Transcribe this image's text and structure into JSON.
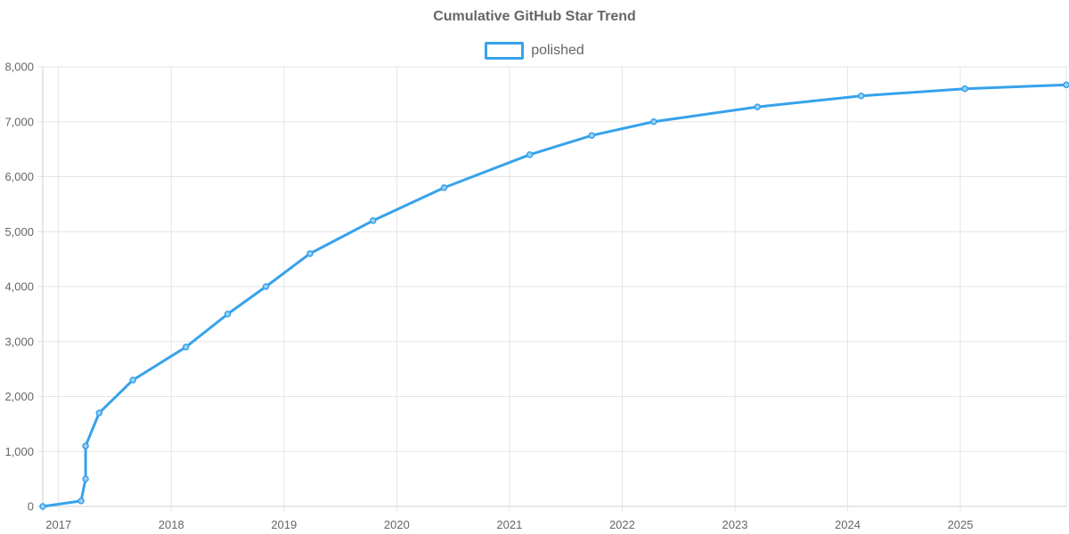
{
  "chart_data": {
    "type": "line",
    "title": "Cumulative GitHub Star Trend",
    "xlabel": "",
    "ylabel": "",
    "x_unit": "year",
    "xlim": [
      2016.86,
      2025.94
    ],
    "ylim": [
      0,
      8000
    ],
    "y_ticks": [
      0,
      1000,
      2000,
      3000,
      4000,
      5000,
      6000,
      7000,
      8000
    ],
    "y_tick_labels": [
      "0",
      "1,000",
      "2,000",
      "3,000",
      "4,000",
      "5,000",
      "6,000",
      "7,000",
      "8,000"
    ],
    "x_ticks": [
      2017,
      2018,
      2019,
      2020,
      2021,
      2022,
      2023,
      2024,
      2025
    ],
    "x_tick_labels": [
      "2017",
      "2018",
      "2019",
      "2020",
      "2021",
      "2022",
      "2023",
      "2024",
      "2025"
    ],
    "grid": true,
    "legend_position": "top-center",
    "series": [
      {
        "name": "polished",
        "color": "#36A2EB",
        "fill_color": "#9AD0F5",
        "x": [
          2016.86,
          2017.2,
          2017.24,
          2017.24,
          2017.36,
          2017.66,
          2018.13,
          2018.5,
          2018.84,
          2019.23,
          2019.79,
          2020.42,
          2021.18,
          2021.73,
          2022.28,
          2023.2,
          2024.12,
          2025.04,
          2025.94
        ],
        "y": [
          0,
          100,
          500,
          1100,
          1700,
          2300,
          2900,
          3500,
          4000,
          4600,
          5200,
          5800,
          6400,
          6750,
          7000,
          7270,
          7470,
          7600,
          7670
        ]
      }
    ]
  }
}
